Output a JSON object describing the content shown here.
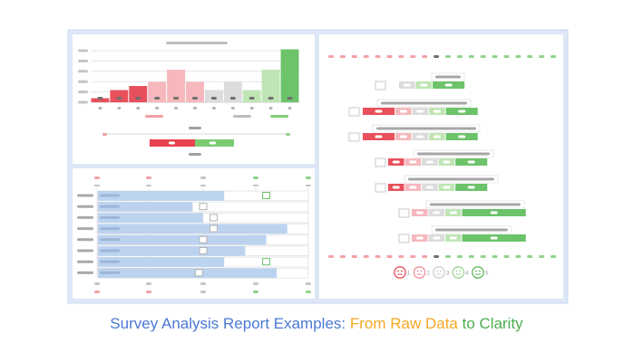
{
  "caption": {
    "part1": "Survey Analysis Report Examples: ",
    "part2": "From Raw Data",
    "part3": " to Clarity"
  },
  "colors": {
    "caption_blue": "#4a78d6",
    "caption_orange": "#f5a623",
    "caption_green": "#4caf50",
    "neg_strong": "#e8505b",
    "neg_light": "#f6b8bd",
    "neutral": "#dcdcdc",
    "pos_light": "#bfe5b4",
    "pos_strong": "#6cc36a",
    "bar_blue": "#bcd3f0",
    "panel_border": "#c8d8ee"
  },
  "chart_data": [
    {
      "type": "bar",
      "values": [
        1,
        3,
        4,
        5,
        8,
        5,
        3,
        5,
        3,
        8,
        13
      ],
      "colors": [
        "neg_strong",
        "neg_strong",
        "neg_strong",
        "neg_light",
        "neg_light",
        "neg_light",
        "neutral",
        "neutral",
        "pos_light",
        "pos_light",
        "pos_strong"
      ],
      "ylim": [
        0,
        14
      ],
      "grid": true
    },
    {
      "type": "bar",
      "orientation": "horizontal",
      "values": [
        60,
        45,
        50,
        90,
        80,
        70,
        60,
        85
      ],
      "markers": [
        80,
        50,
        55,
        55,
        50,
        50,
        80,
        48
      ],
      "xlim": [
        0,
        100
      ]
    },
    {
      "type": "bar",
      "orientation": "horizontal-stacked",
      "segments": [
        "neg_strong",
        "neg_light",
        "neutral",
        "pos_light",
        "pos_strong"
      ],
      "rows": [
        [
          0,
          0,
          10,
          10,
          20
        ],
        [
          20,
          10,
          10,
          10,
          20
        ],
        [
          20,
          10,
          10,
          10,
          20
        ],
        [
          10,
          10,
          10,
          10,
          20
        ],
        [
          10,
          10,
          10,
          10,
          20
        ],
        [
          0,
          10,
          10,
          10,
          40
        ],
        [
          0,
          10,
          10,
          10,
          40
        ]
      ],
      "legend_faces": [
        "1",
        "2",
        "3",
        "4",
        "5"
      ]
    }
  ]
}
